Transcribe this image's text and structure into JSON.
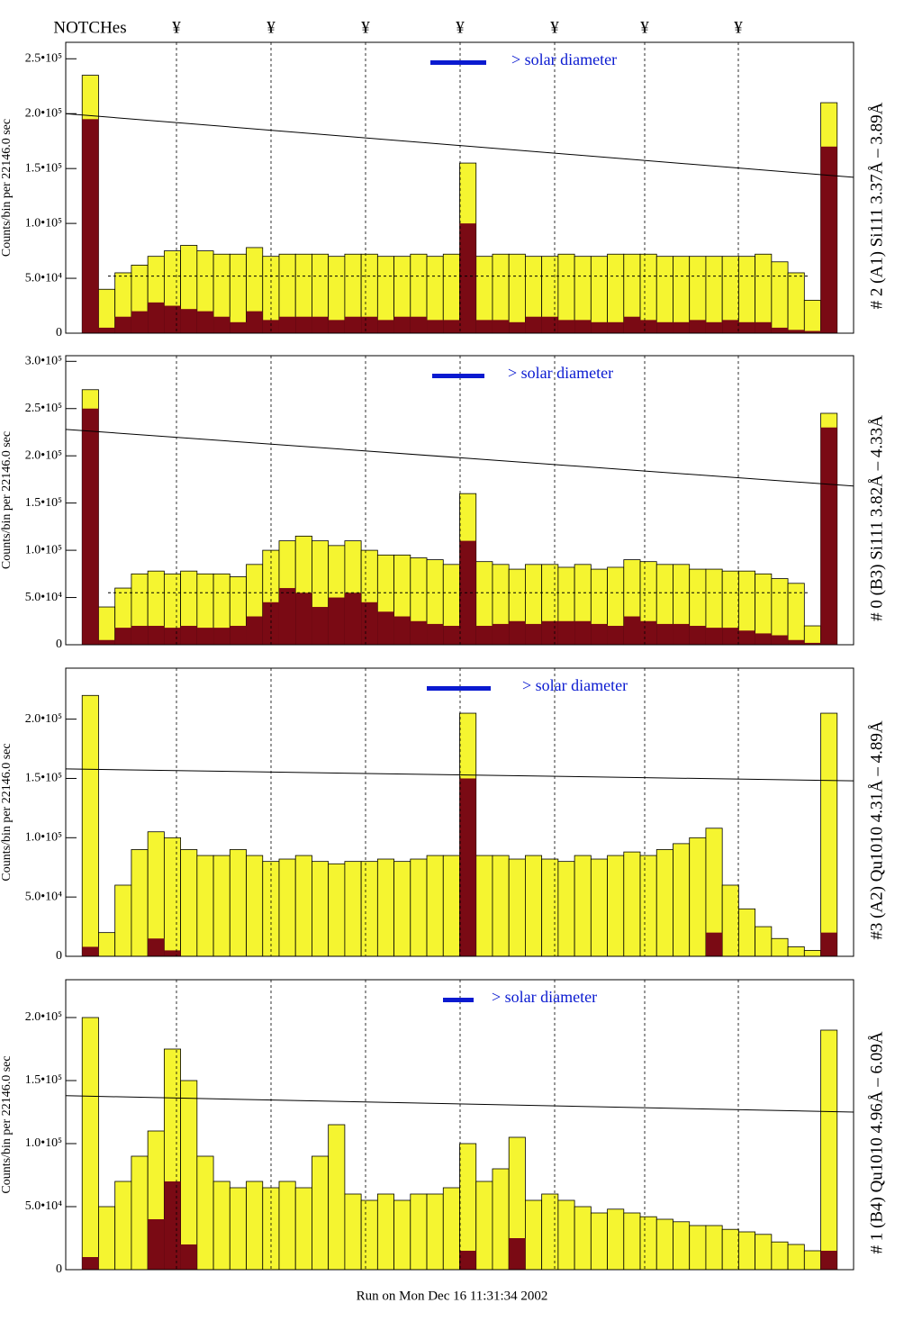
{
  "header": {
    "label": "NOTCHes",
    "notches": [
      "¥",
      "¥",
      "¥",
      "¥",
      "¥",
      "¥",
      "¥"
    ]
  },
  "chart_data": [
    {
      "type": "step",
      "title": "# 2 (A1) Si111  3.37Å – 3.89Å",
      "y_label": "Counts/bin per  22146.0 sec",
      "annotation": "> solar diameter",
      "ylim": [
        0,
        265000
      ],
      "yticks": [
        0,
        {
          "value": 50000,
          "label": "5.0•10⁴"
        },
        {
          "value": 100000,
          "label": "1.0•10⁵"
        },
        {
          "value": 150000,
          "label": "1.5•10⁵"
        },
        {
          "value": 200000,
          "label": "2.0•10⁵"
        },
        {
          "value": 250000,
          "label": "2.5•10⁵"
        }
      ],
      "trend": [
        200000,
        142000
      ],
      "level": 52000,
      "series": [
        {
          "color": "#f5f530",
          "values": [
            0,
            235000,
            40000,
            55000,
            62000,
            70000,
            75000,
            80000,
            75000,
            72000,
            72000,
            78000,
            70000,
            72000,
            72000,
            72000,
            70000,
            72000,
            72000,
            70000,
            70000,
            72000,
            70000,
            72000,
            155000,
            70000,
            72000,
            72000,
            70000,
            70000,
            72000,
            70000,
            70000,
            72000,
            72000,
            72000,
            70000,
            70000,
            70000,
            70000,
            70000,
            70000,
            72000,
            65000,
            55000,
            30000,
            210000,
            0
          ]
        },
        {
          "color": "#7a0a14",
          "values": [
            0,
            195000,
            5000,
            15000,
            20000,
            28000,
            25000,
            22000,
            20000,
            15000,
            10000,
            20000,
            12000,
            15000,
            15000,
            15000,
            12000,
            15000,
            15000,
            12000,
            15000,
            15000,
            12000,
            12000,
            100000,
            12000,
            12000,
            10000,
            15000,
            15000,
            12000,
            12000,
            10000,
            10000,
            15000,
            12000,
            10000,
            10000,
            12000,
            10000,
            12000,
            10000,
            10000,
            5000,
            3000,
            2000,
            170000,
            0
          ]
        }
      ]
    },
    {
      "type": "step",
      "title": "# 0 (B3) Si111  3.82Å – 4.33Å",
      "y_label": "Counts/bin per  22146.0 sec",
      "annotation": "> solar diameter",
      "ylim": [
        0,
        306000
      ],
      "yticks": [
        0,
        {
          "value": 50000,
          "label": "5.0•10⁴"
        },
        {
          "value": 100000,
          "label": "1.0•10⁵"
        },
        {
          "value": 150000,
          "label": "1.5•10⁵"
        },
        {
          "value": 200000,
          "label": "2.0•10⁵"
        },
        {
          "value": 250000,
          "label": "2.5•10⁵"
        },
        {
          "value": 300000,
          "label": "3.0•10⁵"
        }
      ],
      "trend": [
        228000,
        168000
      ],
      "level": 55000,
      "series": [
        {
          "color": "#f5f530",
          "values": [
            0,
            270000,
            40000,
            60000,
            75000,
            78000,
            75000,
            78000,
            75000,
            75000,
            72000,
            85000,
            100000,
            110000,
            115000,
            110000,
            105000,
            110000,
            100000,
            95000,
            95000,
            92000,
            90000,
            85000,
            160000,
            88000,
            85000,
            80000,
            85000,
            85000,
            82000,
            85000,
            80000,
            82000,
            90000,
            88000,
            85000,
            85000,
            80000,
            80000,
            78000,
            78000,
            75000,
            70000,
            65000,
            20000,
            245000,
            0
          ]
        },
        {
          "color": "#7a0a14",
          "values": [
            0,
            250000,
            5000,
            18000,
            20000,
            20000,
            18000,
            20000,
            18000,
            18000,
            20000,
            30000,
            45000,
            60000,
            55000,
            40000,
            50000,
            55000,
            45000,
            35000,
            30000,
            25000,
            22000,
            20000,
            110000,
            20000,
            22000,
            25000,
            22000,
            25000,
            25000,
            25000,
            22000,
            20000,
            30000,
            25000,
            22000,
            22000,
            20000,
            18000,
            18000,
            15000,
            12000,
            10000,
            5000,
            2000,
            230000,
            0
          ]
        }
      ]
    },
    {
      "type": "step",
      "title": "#3 (A2) Qu1010  4.31Å – 4.89Å",
      "y_label": "Counts/bin per  22146.0 sec",
      "annotation": "> solar diameter",
      "ylim": [
        0,
        243000
      ],
      "yticks": [
        0,
        {
          "value": 50000,
          "label": "5.0•10⁴"
        },
        {
          "value": 100000,
          "label": "1.0•10⁵"
        },
        {
          "value": 150000,
          "label": "1.5•10⁵"
        },
        {
          "value": 200000,
          "label": "2.0•10⁵"
        }
      ],
      "trend": [
        158000,
        148000
      ],
      "series": [
        {
          "color": "#f5f530",
          "values": [
            0,
            220000,
            20000,
            60000,
            90000,
            105000,
            100000,
            90000,
            85000,
            85000,
            90000,
            85000,
            80000,
            82000,
            85000,
            80000,
            78000,
            80000,
            80000,
            82000,
            80000,
            82000,
            85000,
            85000,
            205000,
            85000,
            85000,
            82000,
            85000,
            82000,
            80000,
            85000,
            82000,
            85000,
            88000,
            85000,
            90000,
            95000,
            100000,
            108000,
            60000,
            40000,
            25000,
            15000,
            8000,
            5000,
            205000,
            0
          ]
        },
        {
          "color": "#7a0a14",
          "values": [
            0,
            8000,
            0,
            0,
            0,
            15000,
            5000,
            0,
            0,
            0,
            0,
            0,
            0,
            0,
            0,
            0,
            0,
            0,
            0,
            0,
            0,
            0,
            0,
            0,
            150000,
            0,
            0,
            0,
            0,
            0,
            0,
            0,
            0,
            0,
            0,
            0,
            0,
            0,
            0,
            20000,
            0,
            0,
            0,
            0,
            0,
            0,
            20000,
            0
          ]
        }
      ]
    },
    {
      "type": "step",
      "title": "# 1 (B4) Qu1010 4.96Å – 6.09Å",
      "y_label": "Counts/bin per  22146.0 sec",
      "annotation": "> solar diameter",
      "ylim": [
        0,
        230000
      ],
      "yticks": [
        0,
        {
          "value": 50000,
          "label": "5.0•10⁴"
        },
        {
          "value": 100000,
          "label": "1.0•10⁵"
        },
        {
          "value": 150000,
          "label": "1.5•10⁵"
        },
        {
          "value": 200000,
          "label": "2.0•10⁵"
        }
      ],
      "trend": [
        138000,
        125000
      ],
      "series": [
        {
          "color": "#f5f530",
          "values": [
            0,
            200000,
            50000,
            70000,
            90000,
            110000,
            175000,
            150000,
            90000,
            70000,
            65000,
            70000,
            65000,
            70000,
            65000,
            90000,
            115000,
            60000,
            55000,
            60000,
            55000,
            60000,
            60000,
            65000,
            100000,
            70000,
            80000,
            105000,
            55000,
            60000,
            55000,
            50000,
            45000,
            48000,
            45000,
            42000,
            40000,
            38000,
            35000,
            35000,
            32000,
            30000,
            28000,
            22000,
            20000,
            15000,
            190000,
            0
          ]
        },
        {
          "color": "#7a0a14",
          "values": [
            0,
            10000,
            0,
            0,
            0,
            40000,
            70000,
            20000,
            0,
            0,
            0,
            0,
            0,
            0,
            0,
            0,
            0,
            0,
            0,
            0,
            0,
            0,
            0,
            0,
            15000,
            0,
            0,
            25000,
            0,
            0,
            0,
            0,
            0,
            0,
            0,
            0,
            0,
            0,
            0,
            0,
            0,
            0,
            0,
            0,
            0,
            0,
            15000,
            0
          ]
        }
      ]
    }
  ],
  "footer": "Run on Mon Dec 16 11:31:34 2002"
}
